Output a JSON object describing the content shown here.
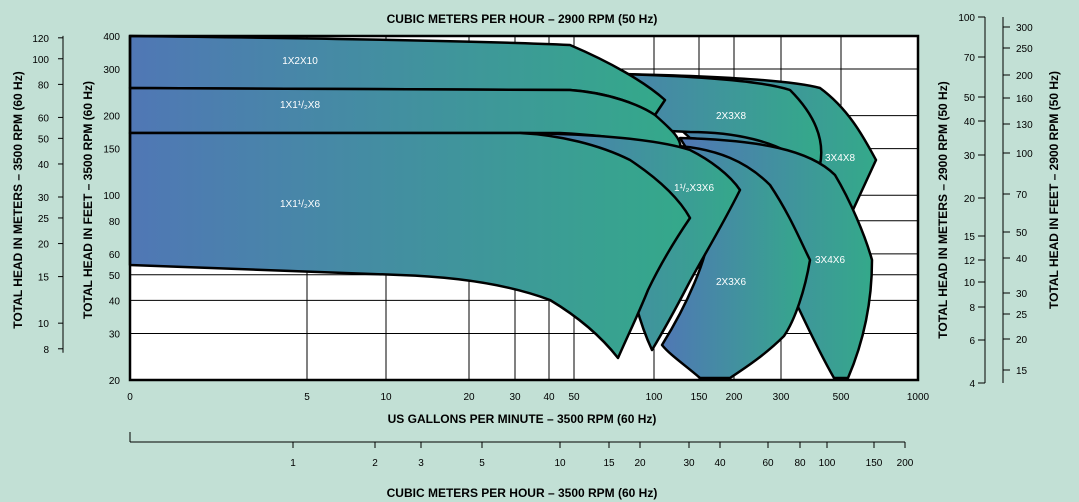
{
  "chart_data": {
    "type": "area",
    "title_top": "CUBIC METERS PER HOUR – 2900 RPM (50 Hz)",
    "xlabel": "US GALLONS PER MINUTE – 3500 RPM (60 Hz)",
    "xlabel_bottom": "CUBIC METERS PER HOUR – 3500 RPM (60 Hz)",
    "ylabel_left_meters": "TOTAL HEAD IN METERS – 3500 RPM (60 Hz)",
    "ylabel_left_feet": "TOTAL HEAD IN FEET – 3500 RPM (60 Hz)",
    "ylabel_right_meters": "TOTAL HEAD IN METERS – 2900 RPM (50 Hz)",
    "ylabel_right_feet": "TOTAL HEAD IN FEET – 2900 RPM (50 Hz)",
    "x_scale": "log",
    "y_scale": "log",
    "xlim": [
      0,
      1000
    ],
    "ylim": [
      20,
      400
    ],
    "x_ticks": [
      "0",
      "5",
      "10",
      "20",
      "30",
      "40",
      "50",
      "100",
      "150",
      "200",
      "300",
      "500",
      "1000"
    ],
    "y_ticks_feet": [
      "20",
      "30",
      "40",
      "50",
      "60",
      "80",
      "100",
      "150",
      "200",
      "300",
      "400"
    ],
    "y_ticks_meters_60": [
      "8",
      "10",
      "15",
      "20",
      "25",
      "30",
      "40",
      "50",
      "60",
      "80",
      "100",
      "120"
    ],
    "x2_ticks_m3h_60": [
      "1",
      "2",
      "3",
      "5",
      "10",
      "15",
      "20",
      "30",
      "40",
      "60",
      "80",
      "100",
      "150",
      "200"
    ],
    "y_ticks_meters_50": [
      "4",
      "6",
      "8",
      "10",
      "12",
      "15",
      "20",
      "30",
      "40",
      "50",
      "70",
      "100"
    ],
    "y_ticks_feet_50": [
      "15",
      "20",
      "25",
      "30",
      "40",
      "50",
      "70",
      "100",
      "130",
      "160",
      "200",
      "250",
      "300"
    ],
    "grid": true,
    "gradient_colors": [
      "#5077b5",
      "#34a98a"
    ],
    "curves": [
      {
        "name": "1X2X10"
      },
      {
        "name": "1X1¹/₂X8"
      },
      {
        "name": "1X1¹/₂X6"
      },
      {
        "name": "2X3X8"
      },
      {
        "name": "3X4X8"
      },
      {
        "name": "1¹/₂X3X6"
      },
      {
        "name": "2X3X6"
      },
      {
        "name": "3X4X6"
      }
    ]
  }
}
